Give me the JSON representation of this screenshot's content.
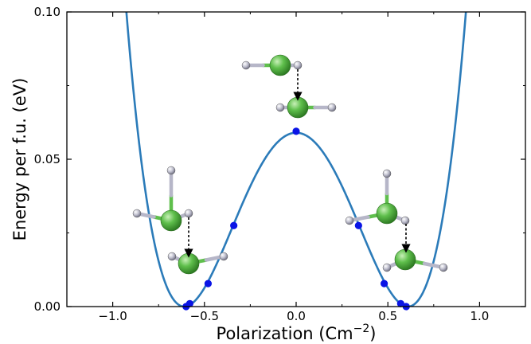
{
  "chart_data": {
    "type": "line",
    "title": "",
    "xlabel_main": "Polarization (Cm",
    "xlabel_sup": "−2",
    "xlabel_close": ")",
    "ylabel": "Energy per f.u. (eV)",
    "xlim": [
      -1.25,
      1.25
    ],
    "ylim": [
      0.0,
      0.1
    ],
    "xticks": [
      -1.0,
      -0.5,
      0.0,
      0.5,
      1.0
    ],
    "xtick_labels": [
      "−1.0",
      "−0.5",
      "0.0",
      "0.5",
      "1.0"
    ],
    "yticks": [
      0.0,
      0.05,
      0.1
    ],
    "ytick_labels": [
      "0.00",
      "0.05",
      "0.10"
    ],
    "grid": false,
    "curve": {
      "form": "quartic double well",
      "minimum_x": 0.61,
      "barrier_height": 0.059,
      "color": "#2b7bb9"
    },
    "points": {
      "color": "#0a14e6",
      "x": [
        -0.6,
        -0.58,
        -0.48,
        -0.34,
        0.0,
        0.34,
        0.48,
        0.57,
        0.6
      ],
      "y": [
        0.0,
        0.001,
        0.0078,
        0.0275,
        0.0595,
        0.0275,
        0.0078,
        0.001,
        0.0
      ]
    },
    "annotations": [
      {
        "name": "structure-left",
        "depicts": "ball-and-stick molecular configuration",
        "atom_colors": [
          "#4caf3c",
          "#b8b8c8"
        ]
      },
      {
        "name": "structure-center",
        "depicts": "ball-and-stick molecular configuration",
        "atom_colors": [
          "#4caf3c",
          "#b8b8c8"
        ]
      },
      {
        "name": "structure-right",
        "depicts": "ball-and-stick molecular configuration",
        "atom_colors": [
          "#4caf3c",
          "#b8b8c8"
        ]
      }
    ]
  }
}
